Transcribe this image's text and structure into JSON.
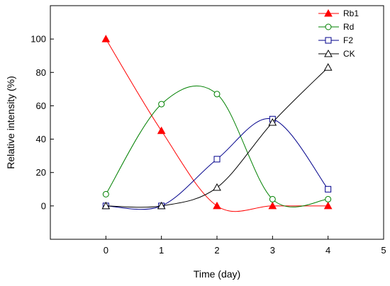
{
  "chart_data": {
    "type": "line",
    "title": "",
    "xlabel": "Time (day)",
    "ylabel": "Relative intensity (%)",
    "xlim": [
      -1,
      5
    ],
    "ylim": [
      -20,
      120
    ],
    "xticks": [
      0,
      1,
      2,
      3,
      4,
      5
    ],
    "yticks": [
      0,
      20,
      40,
      60,
      80,
      100
    ],
    "grid": false,
    "legend_position": "top-right",
    "x": [
      0,
      1,
      2,
      3,
      4
    ],
    "series": [
      {
        "name": "Rb1",
        "color": "#ff0000",
        "marker": "filled-triangle",
        "values": [
          100,
          45,
          0,
          0,
          0
        ]
      },
      {
        "name": "Rd",
        "color": "#008000",
        "marker": "open-circle",
        "values": [
          7,
          61,
          67,
          4,
          4
        ]
      },
      {
        "name": "F2",
        "color": "#00008b",
        "marker": "open-square",
        "values": [
          0,
          0,
          28,
          52,
          10
        ]
      },
      {
        "name": "CK",
        "color": "#000000",
        "marker": "open-triangle",
        "values": [
          0,
          0,
          11,
          50,
          83
        ]
      }
    ]
  }
}
